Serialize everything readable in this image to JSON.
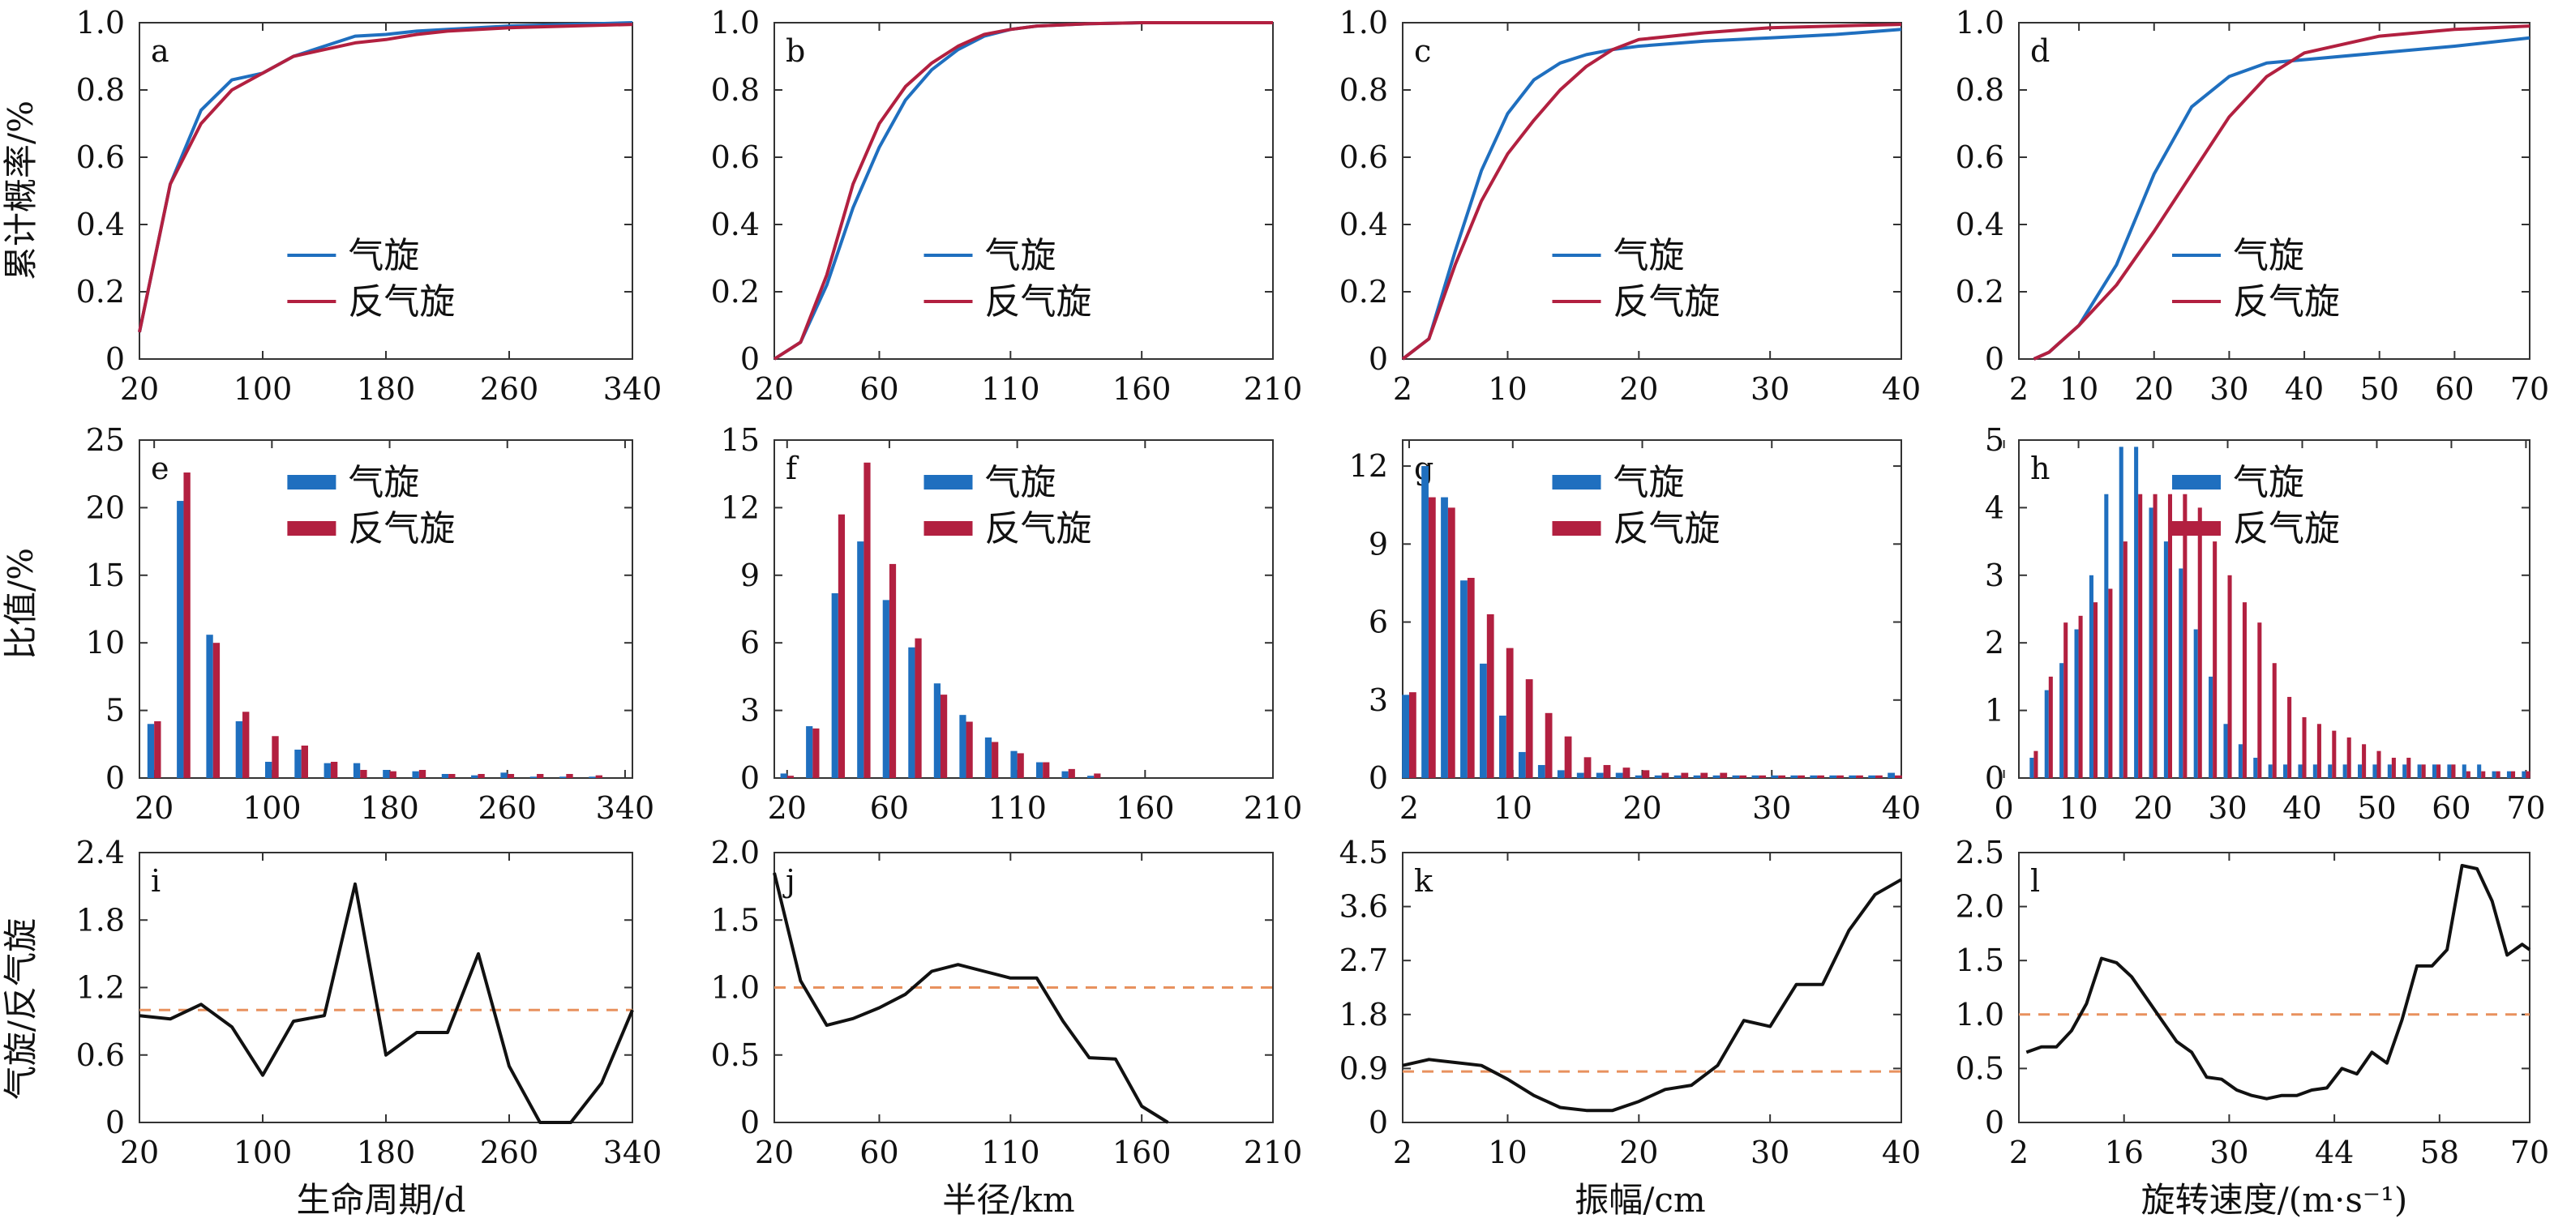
{
  "colors": {
    "cyclone": "#1f6fbf",
    "anticyclone": "#b22040",
    "ratio": "#111111",
    "refline": "#e8915e",
    "frame": "#333333"
  },
  "legend": {
    "cyclone": "气旋",
    "anticyclone": "反气旋"
  },
  "row_labels": {
    "cdf": "累计概率/%",
    "ratio_pct": "比值/%",
    "ratio": "气旋/反气旋"
  },
  "column_xlabels": [
    "生命周期/d",
    "半径/km",
    "振幅/cm",
    "旋转速度/(m·s⁻¹)"
  ],
  "chart_data": [
    {
      "panel": "a",
      "type": "line",
      "xlim": [
        20,
        340
      ],
      "xticks": [
        20,
        100,
        180,
        260,
        340
      ],
      "ylim": [
        0,
        1
      ],
      "yticks": [
        "0",
        "0.2",
        "0.4",
        "0.6",
        "0.8",
        "1.0"
      ],
      "series": [
        {
          "name": "气旋",
          "x": [
            20,
            40,
            60,
            80,
            100,
            120,
            140,
            160,
            180,
            200,
            220,
            260,
            300,
            340
          ],
          "values": [
            0.08,
            0.52,
            0.74,
            0.83,
            0.85,
            0.9,
            0.93,
            0.96,
            0.965,
            0.975,
            0.98,
            0.99,
            0.995,
            1.0
          ]
        },
        {
          "name": "反气旋",
          "x": [
            20,
            40,
            60,
            80,
            100,
            120,
            140,
            160,
            180,
            200,
            220,
            260,
            300,
            340
          ],
          "values": [
            0.08,
            0.52,
            0.7,
            0.8,
            0.85,
            0.9,
            0.92,
            0.94,
            0.95,
            0.965,
            0.975,
            0.985,
            0.99,
            0.995
          ]
        }
      ]
    },
    {
      "panel": "b",
      "type": "line",
      "xlim": [
        20,
        210
      ],
      "xticks": [
        20,
        60,
        110,
        160,
        210
      ],
      "ylim": [
        0,
        1
      ],
      "yticks": [
        "0",
        "0.2",
        "0.4",
        "0.6",
        "0.8",
        "1.0"
      ],
      "series": [
        {
          "name": "气旋",
          "x": [
            20,
            30,
            40,
            50,
            60,
            70,
            80,
            90,
            100,
            110,
            120,
            140,
            160,
            210
          ],
          "values": [
            0,
            0.05,
            0.22,
            0.45,
            0.63,
            0.77,
            0.86,
            0.92,
            0.96,
            0.98,
            0.99,
            0.997,
            1.0,
            1.0
          ]
        },
        {
          "name": "反气旋",
          "x": [
            20,
            30,
            40,
            50,
            60,
            70,
            80,
            90,
            100,
            110,
            120,
            140,
            160,
            210
          ],
          "values": [
            0,
            0.05,
            0.25,
            0.52,
            0.7,
            0.81,
            0.88,
            0.93,
            0.965,
            0.98,
            0.99,
            0.997,
            1.0,
            1.0
          ]
        }
      ]
    },
    {
      "panel": "c",
      "type": "line",
      "xlim": [
        2,
        40
      ],
      "xticks": [
        2,
        10,
        20,
        30,
        40
      ],
      "ylim": [
        0,
        1
      ],
      "yticks": [
        "0",
        "0.2",
        "0.4",
        "0.6",
        "0.8",
        "1.0"
      ],
      "series": [
        {
          "name": "气旋",
          "x": [
            2,
            4,
            6,
            8,
            10,
            12,
            14,
            16,
            18,
            20,
            25,
            30,
            35,
            40
          ],
          "values": [
            0,
            0.06,
            0.32,
            0.56,
            0.73,
            0.83,
            0.88,
            0.905,
            0.92,
            0.93,
            0.945,
            0.955,
            0.965,
            0.98
          ]
        },
        {
          "name": "反气旋",
          "x": [
            2,
            4,
            6,
            8,
            10,
            12,
            14,
            16,
            18,
            20,
            25,
            30,
            35,
            40
          ],
          "values": [
            0,
            0.06,
            0.28,
            0.47,
            0.61,
            0.71,
            0.8,
            0.87,
            0.92,
            0.95,
            0.97,
            0.985,
            0.99,
            0.995
          ]
        }
      ]
    },
    {
      "panel": "d",
      "type": "line",
      "xlim": [
        2,
        70
      ],
      "xticks": [
        2,
        10,
        20,
        30,
        40,
        50,
        60,
        70
      ],
      "ylim": [
        0,
        1
      ],
      "yticks": [
        "0",
        "0.2",
        "0.4",
        "0.6",
        "0.8",
        "1.0"
      ],
      "series": [
        {
          "name": "气旋",
          "x": [
            4,
            6,
            10,
            15,
            20,
            25,
            30,
            35,
            40,
            50,
            60,
            70
          ],
          "values": [
            0,
            0.02,
            0.1,
            0.28,
            0.55,
            0.75,
            0.84,
            0.88,
            0.89,
            0.91,
            0.93,
            0.955
          ]
        },
        {
          "name": "反气旋",
          "x": [
            4,
            6,
            10,
            15,
            20,
            25,
            30,
            35,
            40,
            50,
            60,
            70
          ],
          "values": [
            0,
            0.02,
            0.1,
            0.22,
            0.38,
            0.55,
            0.72,
            0.84,
            0.91,
            0.96,
            0.98,
            0.99
          ]
        }
      ]
    },
    {
      "panel": "e",
      "type": "bar",
      "xlim": [
        10,
        345
      ],
      "xticks": [
        20,
        100,
        180,
        260,
        340
      ],
      "ylim": [
        0,
        25
      ],
      "yticks": [
        "0",
        "5",
        "10",
        "15",
        "20",
        "25"
      ],
      "width": 4.6,
      "x": [
        20,
        40,
        60,
        80,
        100,
        120,
        140,
        160,
        180,
        200,
        220,
        240,
        260,
        280,
        300,
        320
      ],
      "series": [
        {
          "name": "气旋",
          "values": [
            4,
            20.5,
            10.6,
            4.2,
            1.2,
            2.1,
            1.1,
            1.1,
            0.6,
            0.5,
            0.3,
            0.2,
            0.4,
            0.1,
            0.1,
            0.1
          ]
        },
        {
          "name": "反气旋",
          "values": [
            4.2,
            22.6,
            10,
            4.9,
            3.1,
            2.4,
            1.2,
            0.6,
            0.5,
            0.6,
            0.3,
            0.3,
            0.3,
            0.3,
            0.3,
            0.2
          ]
        }
      ]
    },
    {
      "panel": "f",
      "type": "bar",
      "xlim": [
        15,
        210
      ],
      "xticks": [
        20,
        60,
        110,
        160,
        210
      ],
      "ylim": [
        0,
        15
      ],
      "yticks": [
        "0",
        "3",
        "6",
        "9",
        "12",
        "15"
      ],
      "width": 2.6,
      "x": [
        20,
        30,
        40,
        50,
        60,
        70,
        80,
        90,
        100,
        110,
        120,
        130,
        140
      ],
      "series": [
        {
          "name": "气旋",
          "values": [
            0.2,
            2.3,
            8.2,
            10.5,
            7.9,
            5.8,
            4.2,
            2.8,
            1.8,
            1.2,
            0.7,
            0.3,
            0.1
          ]
        },
        {
          "name": "反气旋",
          "values": [
            0.1,
            2.2,
            11.7,
            14,
            9.5,
            6.2,
            3.7,
            2.5,
            1.6,
            1.1,
            0.7,
            0.4,
            0.2
          ]
        }
      ]
    },
    {
      "panel": "g",
      "type": "bar",
      "xlim": [
        1.5,
        40
      ],
      "xticks": [
        2,
        10,
        20,
        30,
        40
      ],
      "ylim": [
        0,
        13
      ],
      "yticks": [
        "0",
        "3",
        "6",
        "9",
        "12"
      ],
      "width": 0.55,
      "x": [
        2,
        3.5,
        5,
        6.5,
        8,
        9.5,
        11,
        12.5,
        14,
        15.5,
        17,
        18.5,
        20,
        21.5,
        23,
        24.5,
        26,
        27.5,
        29,
        30.5,
        32,
        33.5,
        35,
        36.5,
        38,
        39.5
      ],
      "series": [
        {
          "name": "气旋",
          "values": [
            3.2,
            12,
            10.8,
            7.6,
            4.4,
            2.4,
            1,
            0.5,
            0.3,
            0.2,
            0.2,
            0.2,
            0.1,
            0.1,
            0.1,
            0.1,
            0.1,
            0.1,
            0.1,
            0.1,
            0.1,
            0.1,
            0.1,
            0.1,
            0.1,
            0.2
          ]
        },
        {
          "name": "反气旋",
          "values": [
            3.3,
            10.8,
            10.4,
            7.7,
            6.3,
            5,
            3.8,
            2.5,
            1.6,
            0.8,
            0.5,
            0.4,
            0.3,
            0.2,
            0.2,
            0.2,
            0.2,
            0.1,
            0.1,
            0.1,
            0.1,
            0.1,
            0.1,
            0.1,
            0.1,
            0.1
          ]
        }
      ]
    },
    {
      "panel": "h",
      "type": "bar",
      "xlim": [
        2,
        70.5
      ],
      "xticks": [
        0,
        10,
        20,
        30,
        40,
        50,
        60,
        70
      ],
      "ylim": [
        0,
        5
      ],
      "yticks": [
        "0",
        "1",
        "2",
        "3",
        "4",
        "5"
      ],
      "width": 0.55,
      "x": [
        4,
        6,
        8,
        10,
        12,
        14,
        16,
        18,
        20,
        22,
        24,
        26,
        28,
        30,
        32,
        34,
        36,
        38,
        40,
        42,
        44,
        46,
        48,
        50,
        52,
        54,
        56,
        58,
        60,
        62,
        64,
        66,
        68,
        70
      ],
      "series": [
        {
          "name": "气旋",
          "values": [
            0.3,
            1.3,
            1.7,
            2.2,
            3,
            4.2,
            4.9,
            4.9,
            4,
            3.5,
            3.1,
            2.2,
            1.5,
            0.8,
            0.5,
            0.3,
            0.2,
            0.2,
            0.2,
            0.2,
            0.2,
            0.2,
            0.2,
            0.2,
            0.2,
            0.2,
            0.2,
            0.2,
            0.2,
            0.2,
            0.2,
            0.1,
            0.1,
            0.1
          ]
        },
        {
          "name": "反气旋",
          "values": [
            0.4,
            1.5,
            2.3,
            2.4,
            2.6,
            2.8,
            3.5,
            4.2,
            4.2,
            4.2,
            4.2,
            4,
            3.5,
            3,
            2.6,
            2.3,
            1.7,
            1.2,
            0.9,
            0.8,
            0.7,
            0.6,
            0.5,
            0.4,
            0.3,
            0.3,
            0.2,
            0.2,
            0.2,
            0.1,
            0.1,
            0.1,
            0.1,
            0.1
          ]
        }
      ]
    },
    {
      "panel": "i",
      "type": "line",
      "xlim": [
        20,
        340
      ],
      "xticks": [
        20,
        100,
        180,
        260,
        340
      ],
      "ylim": [
        0,
        2.4
      ],
      "yticks": [
        "0",
        "0.6",
        "1.2",
        "1.8",
        "2.4"
      ],
      "ref": 1.0,
      "series": [
        {
          "x": [
            20,
            40,
            60,
            80,
            100,
            120,
            140,
            160,
            180,
            200,
            220,
            240,
            260,
            280,
            300,
            320,
            340
          ],
          "values": [
            0.95,
            0.92,
            1.05,
            0.85,
            0.42,
            0.9,
            0.95,
            2.12,
            0.6,
            0.8,
            0.8,
            1.5,
            0.5,
            0.0,
            0.0,
            0.35,
            1.0
          ]
        }
      ]
    },
    {
      "panel": "j",
      "type": "line",
      "xlim": [
        20,
        210
      ],
      "xticks": [
        20,
        60,
        110,
        160,
        210
      ],
      "ylim": [
        0,
        2
      ],
      "yticks": [
        "0",
        "0.5",
        "1.0",
        "1.5",
        "2.0"
      ],
      "ref": 1.0,
      "series": [
        {
          "x": [
            20,
            30,
            40,
            50,
            60,
            70,
            80,
            90,
            100,
            110,
            120,
            130,
            140,
            150,
            160,
            170
          ],
          "values": [
            1.85,
            1.05,
            0.72,
            0.77,
            0.85,
            0.95,
            1.12,
            1.17,
            1.12,
            1.07,
            1.07,
            0.75,
            0.48,
            0.47,
            0.12,
            0.0
          ]
        }
      ]
    },
    {
      "panel": "k",
      "type": "line",
      "xlim": [
        2,
        40
      ],
      "xticks": [
        2,
        10,
        20,
        30,
        40
      ],
      "ylim": [
        0,
        4.5
      ],
      "yticks": [
        "0",
        "0.9",
        "1.8",
        "2.7",
        "3.6",
        "4.5"
      ],
      "ref": 0.85,
      "series": [
        {
          "x": [
            2,
            4,
            6,
            8,
            10,
            12,
            14,
            16,
            18,
            20,
            22,
            24,
            26,
            28,
            30,
            32,
            34,
            36,
            38,
            40
          ],
          "values": [
            0.95,
            1.05,
            1.0,
            0.95,
            0.72,
            0.45,
            0.25,
            0.2,
            0.2,
            0.35,
            0.55,
            0.62,
            0.95,
            1.7,
            1.6,
            2.3,
            2.3,
            3.2,
            3.8,
            4.05
          ]
        }
      ]
    },
    {
      "panel": "l",
      "type": "line",
      "xlim": [
        2,
        70
      ],
      "xticks": [
        2,
        16,
        30,
        44,
        58,
        70
      ],
      "ylim": [
        0,
        2.5
      ],
      "yticks": [
        "0",
        "0.5",
        "1.0",
        "1.5",
        "2.0",
        "2.5"
      ],
      "ref": 1.0,
      "series": [
        {
          "x": [
            3,
            5,
            7,
            9,
            11,
            13,
            15,
            17,
            19,
            21,
            23,
            25,
            27,
            29,
            31,
            33,
            35,
            37,
            39,
            41,
            43,
            45,
            47,
            49,
            51,
            53,
            55,
            57,
            59,
            61,
            63,
            65,
            67,
            69,
            71
          ],
          "values": [
            0.65,
            0.7,
            0.7,
            0.85,
            1.1,
            1.52,
            1.48,
            1.35,
            1.15,
            0.95,
            0.75,
            0.65,
            0.42,
            0.4,
            0.3,
            0.25,
            0.22,
            0.25,
            0.25,
            0.3,
            0.32,
            0.5,
            0.45,
            0.65,
            0.55,
            0.95,
            1.45,
            1.45,
            1.6,
            2.38,
            2.35,
            2.05,
            1.55,
            1.65,
            1.6
          ]
        }
      ]
    }
  ]
}
